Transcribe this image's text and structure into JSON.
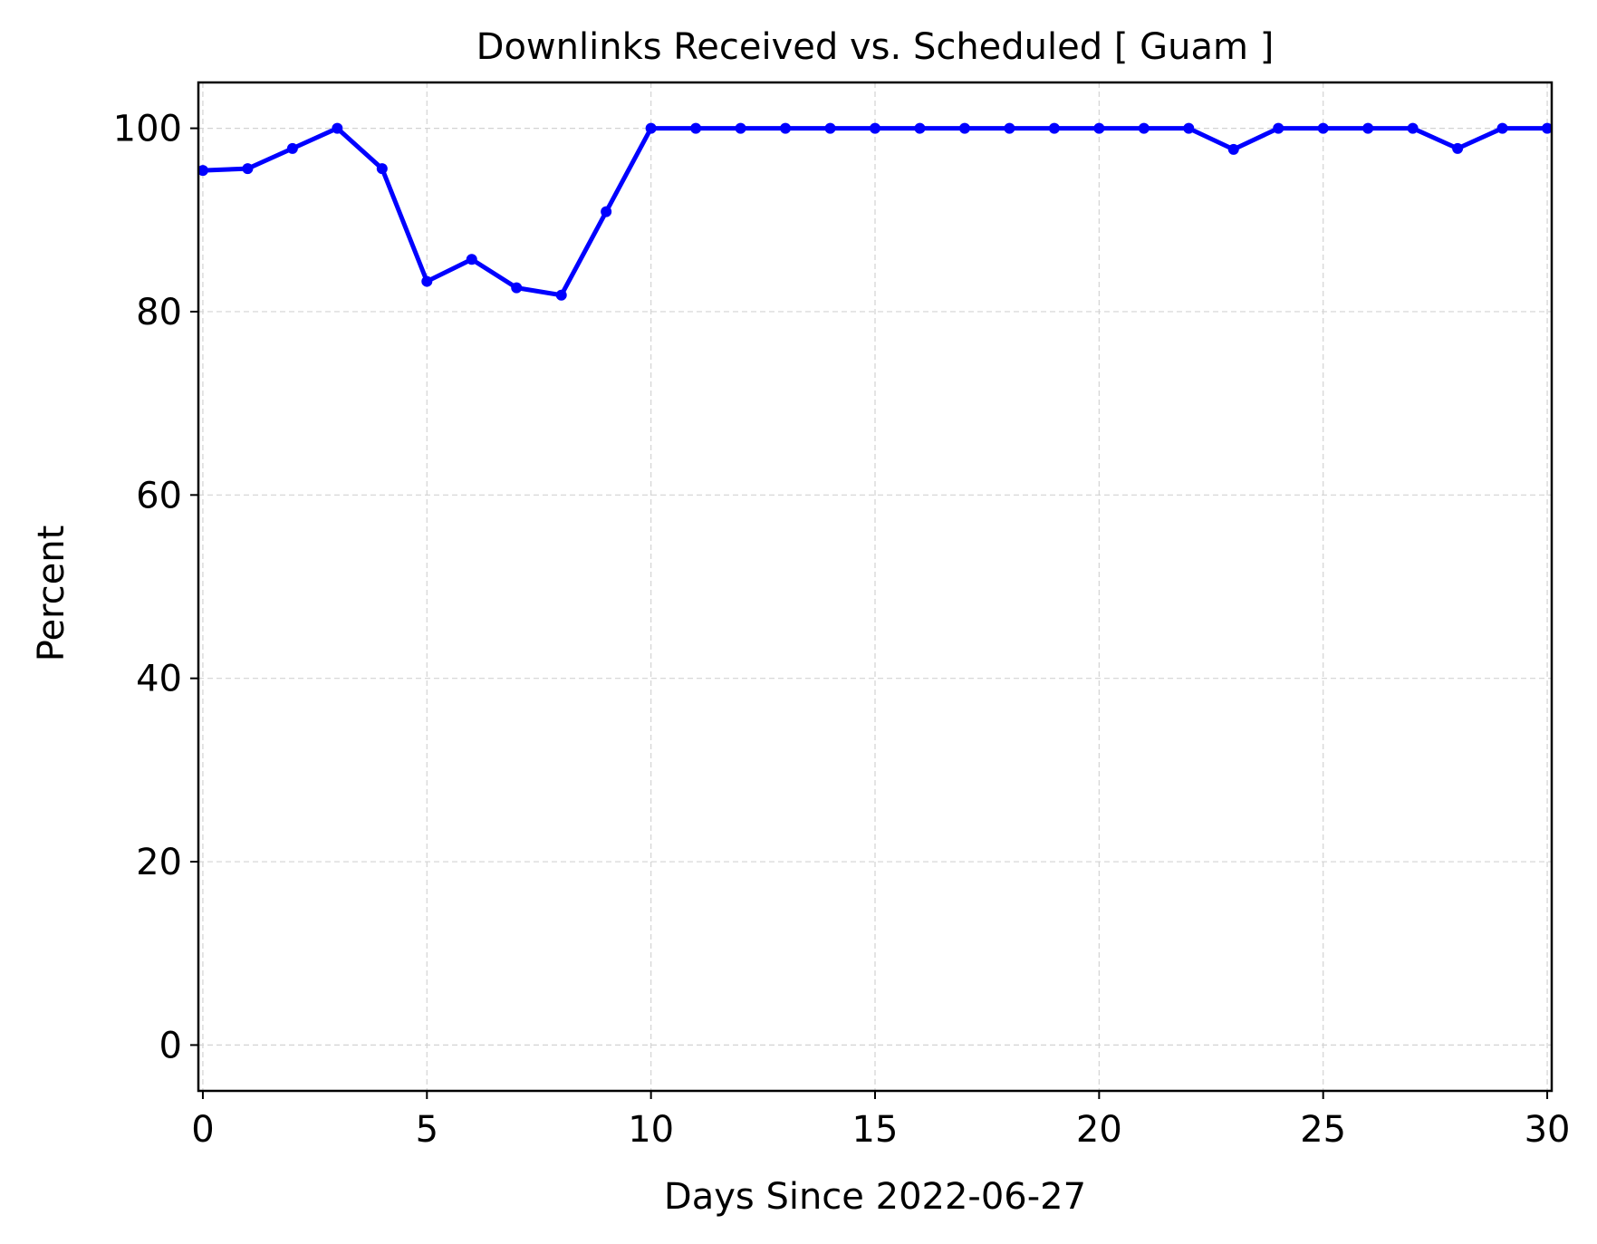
{
  "chart_data": {
    "type": "line",
    "title": "Downlinks Received vs. Scheduled [ Guam ]",
    "xlabel": "Days Since 2022-06-27",
    "ylabel": "Percent",
    "xlim": [
      -0.1,
      30.1
    ],
    "ylim": [
      -5,
      105
    ],
    "xticks": [
      0,
      5,
      10,
      15,
      20,
      25,
      30
    ],
    "yticks": [
      0,
      20,
      40,
      60,
      80,
      100
    ],
    "grid": true,
    "series": [
      {
        "color": "#0000ff",
        "marker": "circle",
        "x": [
          0,
          1,
          2,
          3,
          4,
          5,
          6,
          7,
          8,
          9,
          10,
          11,
          12,
          13,
          14,
          15,
          16,
          17,
          18,
          19,
          20,
          21,
          22,
          23,
          24,
          25,
          26,
          27,
          28,
          29,
          30
        ],
        "y": [
          95.4,
          95.6,
          97.8,
          100,
          95.6,
          83.3,
          85.7,
          82.6,
          81.8,
          90.9,
          100,
          100,
          100,
          100,
          100,
          100,
          100,
          100,
          100,
          100,
          100,
          100,
          100,
          97.7,
          100,
          100,
          100,
          100,
          97.8,
          100,
          100
        ]
      }
    ]
  }
}
